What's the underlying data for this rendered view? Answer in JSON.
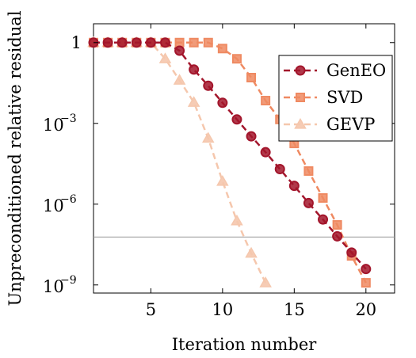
{
  "chart_data": {
    "type": "line",
    "title": "",
    "xlabel": "Iteration number",
    "ylabel": "Unpreconditioned relative residual",
    "y_scale": "log",
    "xlim": [
      1,
      22
    ],
    "ylim": [
      5e-10,
      5
    ],
    "x_ticks": [
      5,
      10,
      15,
      20
    ],
    "x_tick_labels": [
      "5",
      "10",
      "15",
      "20"
    ],
    "y_ticks": [
      1,
      0.001,
      1e-06,
      1e-09
    ],
    "y_tick_labels": [
      "1",
      "10",
      "10",
      "10"
    ],
    "y_tick_exponents": [
      "",
      "−3",
      "−6",
      "−9"
    ],
    "reference_line_y": 6e-08,
    "grid": false,
    "legend_position": "top-right",
    "series": [
      {
        "name": "GenEO",
        "color": "#a3162c",
        "marker": "circle",
        "x": [
          1,
          2,
          3,
          4,
          5,
          6,
          7,
          8,
          9,
          10,
          11,
          12,
          13,
          14,
          15,
          16,
          17,
          18,
          19,
          20
        ],
        "y": [
          1,
          1,
          1,
          1,
          1,
          1,
          0.5,
          0.1,
          0.025,
          0.0058,
          0.0014,
          0.00033,
          8.5e-05,
          2e-05,
          4.8e-06,
          1.1e-06,
          2.7e-07,
          6.4e-08,
          1.6e-08,
          3.9e-09
        ]
      },
      {
        "name": "SVD",
        "color": "#ef8a62",
        "marker": "square",
        "x": [
          1,
          2,
          3,
          4,
          5,
          6,
          7,
          8,
          9,
          10,
          11,
          12,
          13,
          14,
          15,
          16,
          17,
          18,
          19,
          20
        ],
        "y": [
          1,
          1,
          1,
          1,
          1,
          1,
          1,
          1,
          1,
          0.6,
          0.25,
          0.05,
          0.007,
          0.0014,
          0.00018,
          1.7e-05,
          1.7e-06,
          1.7e-07,
          1.2e-08,
          1.2e-09
        ]
      },
      {
        "name": "GEVP",
        "color": "#f5c7ad",
        "marker": "triangle",
        "x": [
          1,
          2,
          3,
          4,
          5,
          6,
          7,
          8,
          9,
          10,
          11,
          12,
          13
        ],
        "y": [
          1,
          1,
          1,
          1,
          1,
          0.25,
          0.04,
          0.006,
          0.00028,
          7e-06,
          2.4e-07,
          1.5e-08,
          1.2e-09
        ]
      }
    ]
  }
}
